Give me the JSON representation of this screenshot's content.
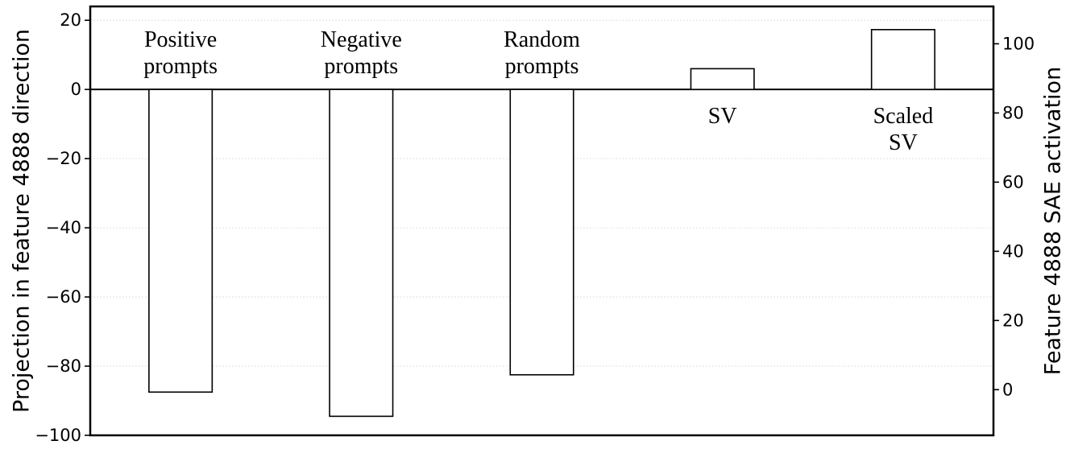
{
  "chart_data": {
    "type": "bar",
    "categories": [
      "Positive prompts",
      "Negative prompts",
      "Random prompts",
      "SV",
      "Scaled SV"
    ],
    "category_label_lines": [
      [
        "Positive",
        "prompts"
      ],
      [
        "Negative",
        "prompts"
      ],
      [
        "Random",
        "prompts"
      ],
      [
        "SV"
      ],
      [
        "Scaled",
        "SV"
      ]
    ],
    "values": [
      -87.5,
      -94.5,
      -82.5,
      6.0,
      17.3
    ],
    "ylabel": "Projection in feature 4888 direction",
    "ylim": [
      -100,
      24
    ],
    "yticks": [
      20,
      0,
      -20,
      -40,
      -60,
      -80,
      -100
    ],
    "ytick_labels": [
      "20",
      "0",
      "−20",
      "−40",
      "−60",
      "−80",
      "−100"
    ],
    "y2label": "Feature 4888 SAE activation",
    "y2lim": [
      -13.2,
      110.8
    ],
    "y2ticks": [
      100,
      80,
      60,
      40,
      20,
      0
    ],
    "y2tick_labels": [
      "100",
      "80",
      "60",
      "40",
      "20",
      "0"
    ],
    "grid": true,
    "bar_fill": "#ffffff",
    "bar_edge": "#000000"
  }
}
